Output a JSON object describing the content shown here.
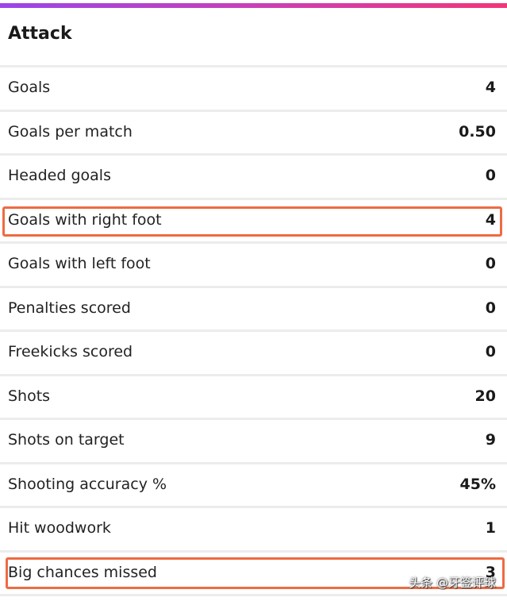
{
  "section": {
    "title": "Attack"
  },
  "rows": [
    {
      "label": "Goals",
      "value": "4"
    },
    {
      "label": "Goals per match",
      "value": "0.50"
    },
    {
      "label": "Headed goals",
      "value": "0"
    },
    {
      "label": "Goals with right foot",
      "value": "4",
      "highlighted": true
    },
    {
      "label": "Goals with left foot",
      "value": "0"
    },
    {
      "label": "Penalties scored",
      "value": "0"
    },
    {
      "label": "Freekicks scored",
      "value": "0"
    },
    {
      "label": "Shots",
      "value": "20"
    },
    {
      "label": "Shots on target",
      "value": "9"
    },
    {
      "label": "Shooting accuracy %",
      "value": "45%"
    },
    {
      "label": "Hit woodwork",
      "value": "1"
    },
    {
      "label": "Big chances missed",
      "value": "3",
      "highlighted": true
    }
  ],
  "watermark": "头条 @牙签评球",
  "colors": {
    "highlight": "#ee6b42",
    "gradient_start": "#9b45e8",
    "gradient_end": "#f2357a"
  }
}
